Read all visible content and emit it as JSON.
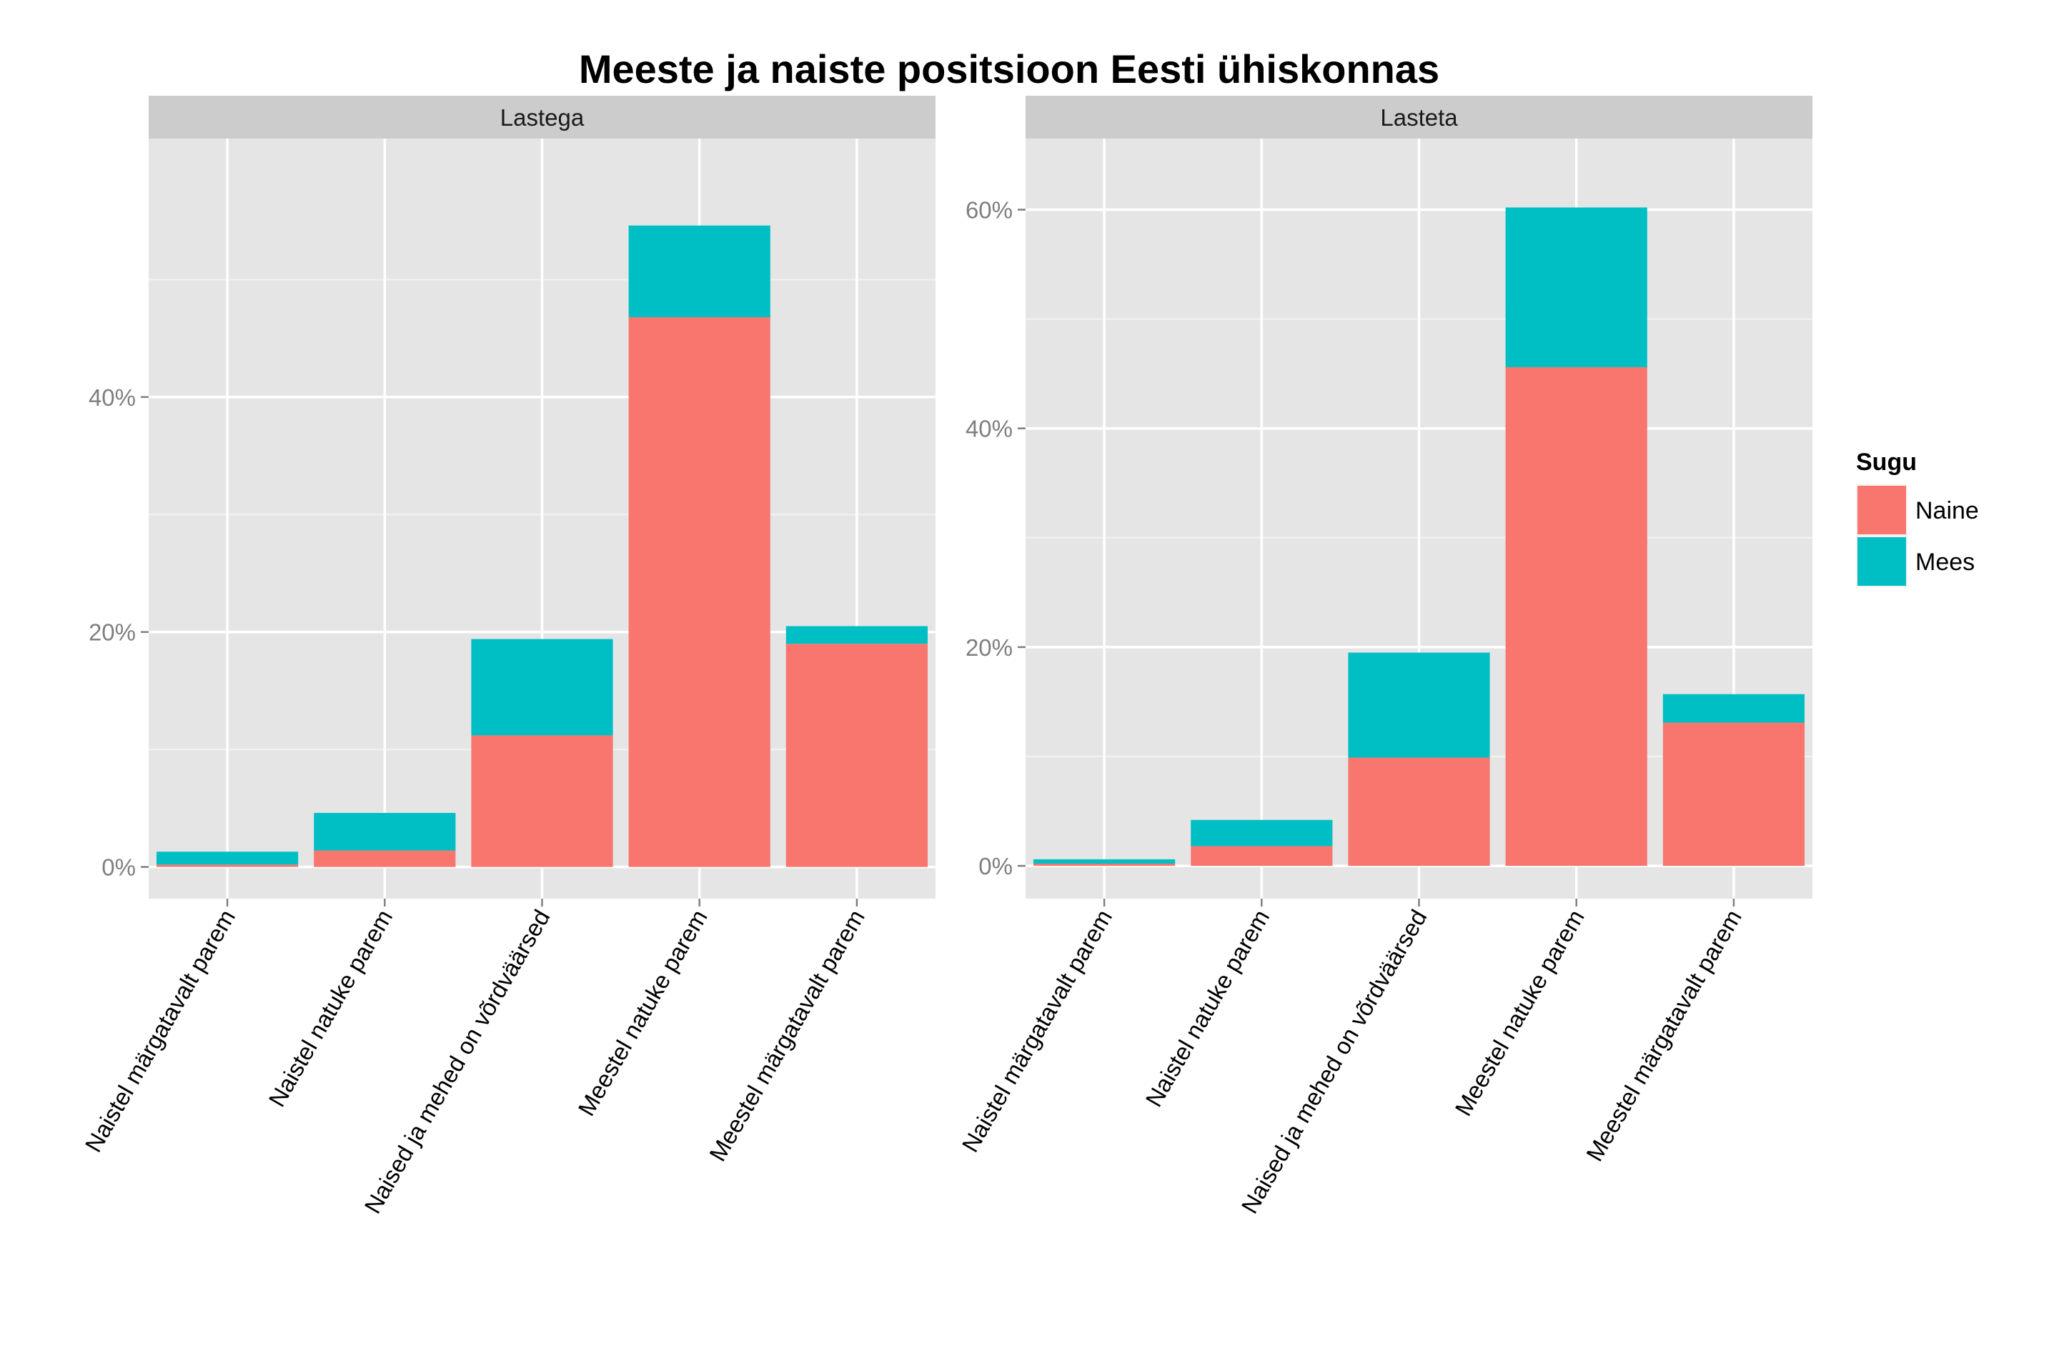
{
  "chart_data": {
    "type": "bar",
    "stacked": true,
    "title": "Meeste ja naiste positsioon Eesti ühiskonnas",
    "categories": [
      "Naistel märgatavalt parem",
      "Naistel natuke parem",
      "Naised ja mehed on võrdväärsed",
      "Meestel natuke parem",
      "Meestel märgatavalt parem"
    ],
    "y_tick_labels": [
      "0%",
      "20%",
      "40%",
      "60%"
    ],
    "y_unit": "%",
    "legend": {
      "title": "Sugu",
      "position": "right"
    },
    "colors": {
      "Naine": "#F8766D",
      "Mees": "#00BFC4"
    },
    "panels": [
      {
        "label": "Lastega",
        "ylim": [
          -2.7,
          62
        ],
        "y_ticks": [
          0,
          20,
          40
        ],
        "series": [
          {
            "name": "Naine",
            "values": [
              0.2,
              1.4,
              11.2,
              46.8,
              19.0
            ]
          },
          {
            "name": "Mees",
            "values": [
              1.1,
              3.2,
              8.2,
              7.8,
              1.5
            ]
          }
        ]
      },
      {
        "label": "Lasteta",
        "ylim": [
          -3.0,
          66.5
        ],
        "y_ticks": [
          0,
          20,
          40,
          60
        ],
        "series": [
          {
            "name": "Naine",
            "values": [
              0.2,
              1.8,
              9.9,
              45.6,
              13.1
            ]
          },
          {
            "name": "Mees",
            "values": [
              0.4,
              2.4,
              9.6,
              14.6,
              2.6
            ]
          }
        ]
      }
    ]
  }
}
